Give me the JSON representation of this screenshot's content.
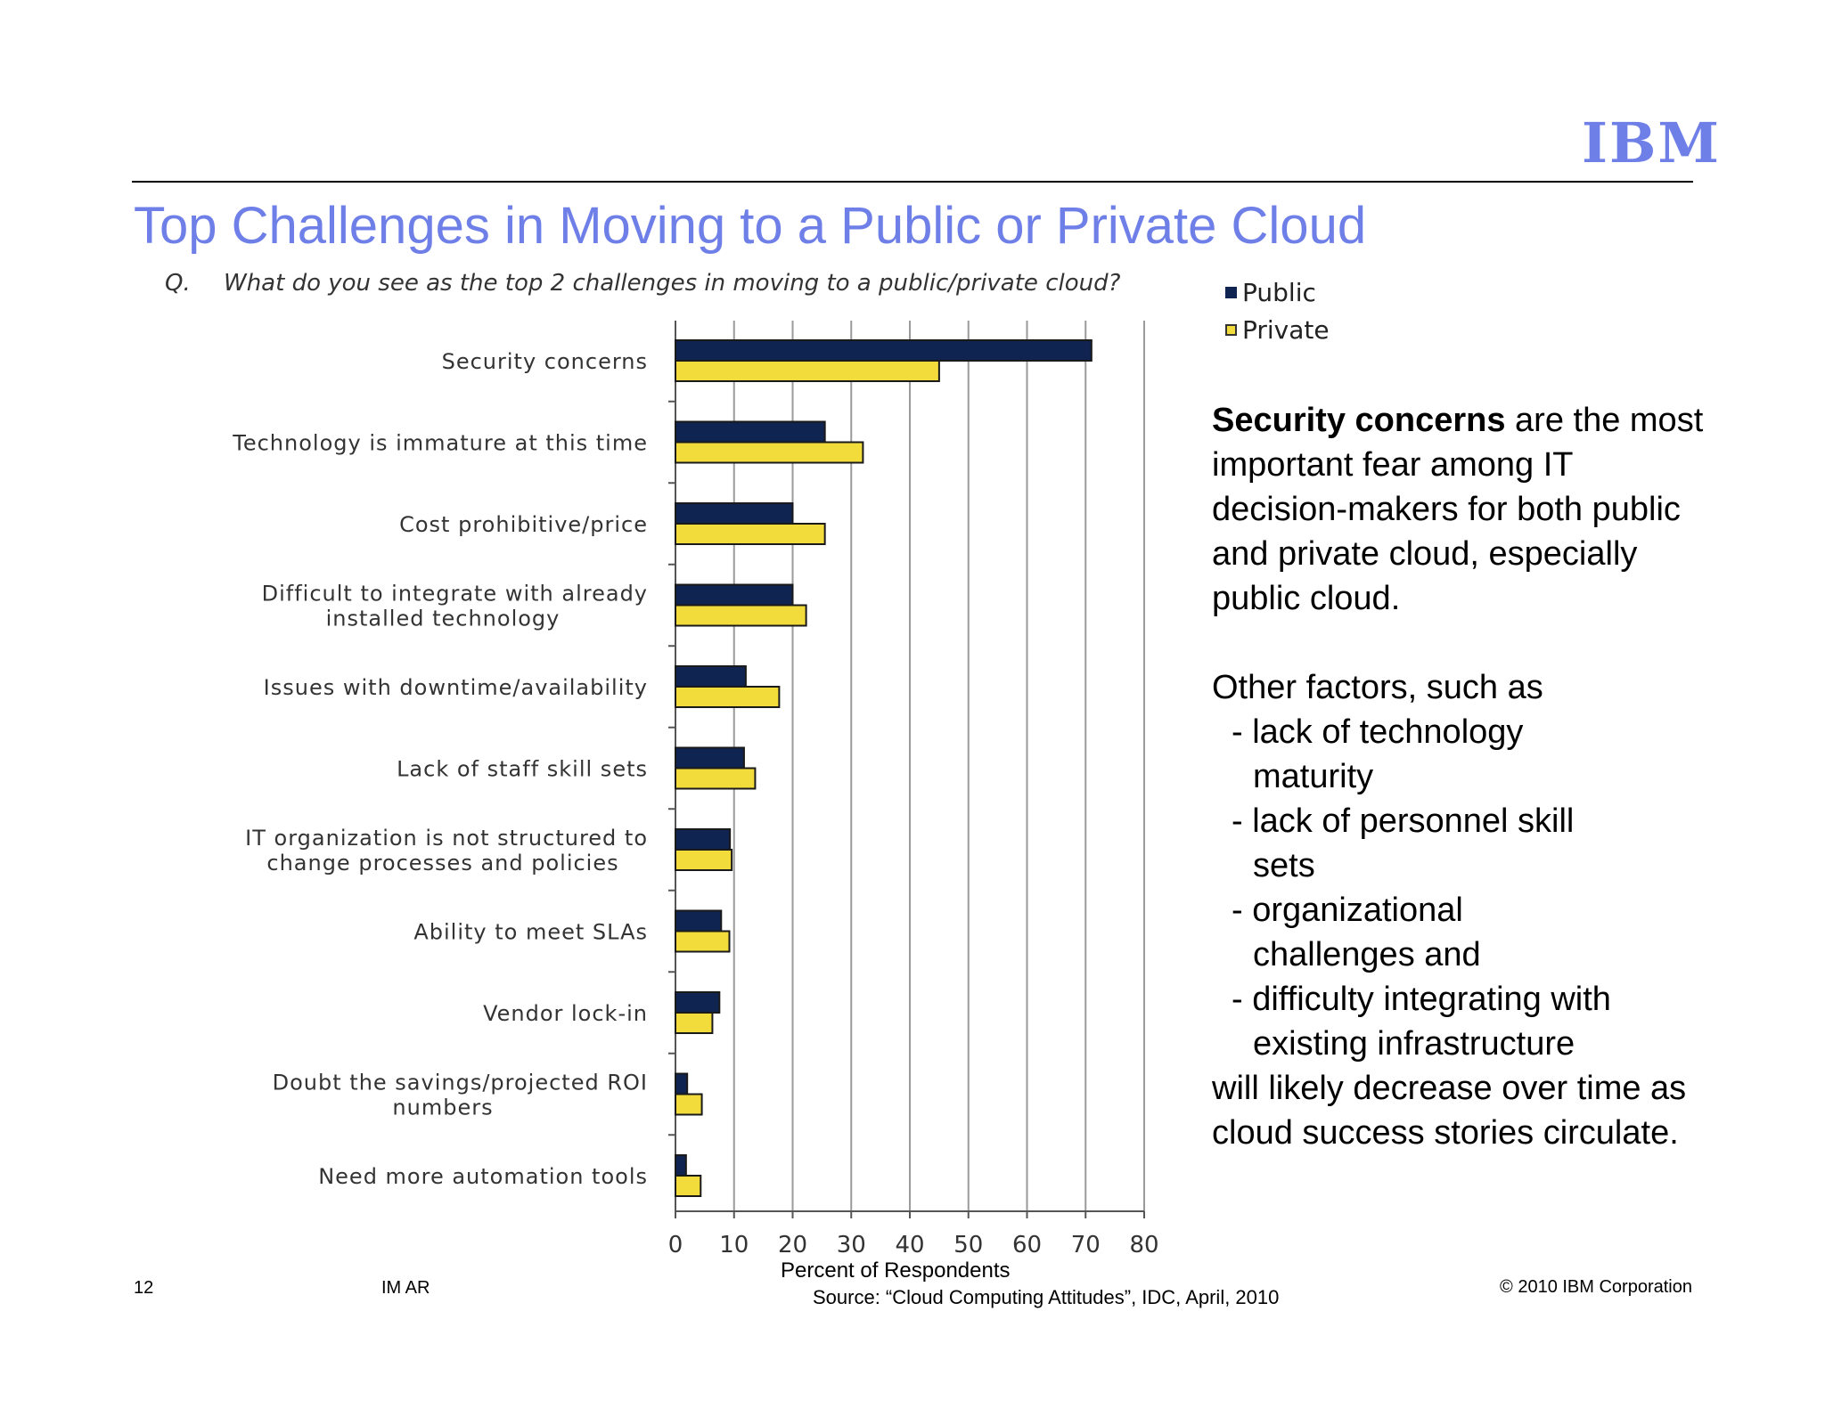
{
  "header": {
    "logo": "IBM",
    "title": "Top Challenges in Moving to a Public or Private Cloud"
  },
  "question": {
    "prefix": "Q.",
    "text": "What do you see as the top 2 challenges in moving to a public/private cloud?"
  },
  "colors": {
    "title": "#6f7fe8",
    "public": "#0f2451",
    "private": "#f2dc3c"
  },
  "chart_data": {
    "type": "bar",
    "orientation": "horizontal",
    "categories": [
      "Security concerns",
      "Technology is immature at this time",
      "Cost prohibitive/price",
      "Difficult to integrate with already installed technology",
      "Issues with downtime/availability",
      "Lack of staff skill sets",
      "IT organization is not structured to change processes and policies",
      "Ability to meet SLAs",
      "Vendor lock-in",
      "Doubt the savings/projected ROI numbers",
      "Need more automation tools"
    ],
    "category_lines": [
      [
        "Security concerns"
      ],
      [
        "Technology is immature at this time"
      ],
      [
        "Cost prohibitive/price"
      ],
      [
        "Difficult to integrate with already",
        "installed technology"
      ],
      [
        "Issues with downtime/availability"
      ],
      [
        "Lack of staff skill sets"
      ],
      [
        "IT organization is not structured to",
        "change processes and policies"
      ],
      [
        "Ability to meet SLAs"
      ],
      [
        "Vendor lock-in"
      ],
      [
        "Doubt the savings/projected ROI",
        "numbers"
      ],
      [
        "Need more automation tools"
      ]
    ],
    "series": [
      {
        "name": "Public",
        "values": [
          71,
          25.5,
          20,
          20,
          12,
          11.7,
          9.3,
          7.8,
          7.5,
          2,
          1.8
        ]
      },
      {
        "name": "Private",
        "values": [
          45,
          32,
          25.5,
          22.3,
          17.7,
          13.6,
          9.6,
          9.2,
          6.3,
          4.5,
          4.3
        ]
      }
    ],
    "xlabel": "Percent of Respondents",
    "xlim": [
      0,
      80
    ],
    "xticks": [
      "0",
      "10",
      "20",
      "30",
      "40",
      "50",
      "60",
      "70",
      "80"
    ],
    "grid": "vertical",
    "legend": "top-right"
  },
  "side_text": {
    "lead_bold": "Security concerns",
    "lead_rest": " are the most important fear among IT decision-makers for both public and private cloud, especially public cloud.",
    "other_intro": "Other factors, such as",
    "factors": [
      [
        "- lack of technology",
        "maturity"
      ],
      [
        "- lack of personnel skill",
        "sets"
      ],
      [
        "- organizational",
        "challenges and"
      ],
      [
        "- difficulty integrating with",
        "existing infrastructure"
      ]
    ],
    "closing": "will likely decrease over time as cloud success stories circulate."
  },
  "footer": {
    "page_number": "12",
    "left_label": "IM AR",
    "source": "Source: “Cloud Computing Attitudes”, IDC, April, 2010",
    "copyright": "© 2010 IBM Corporation"
  }
}
